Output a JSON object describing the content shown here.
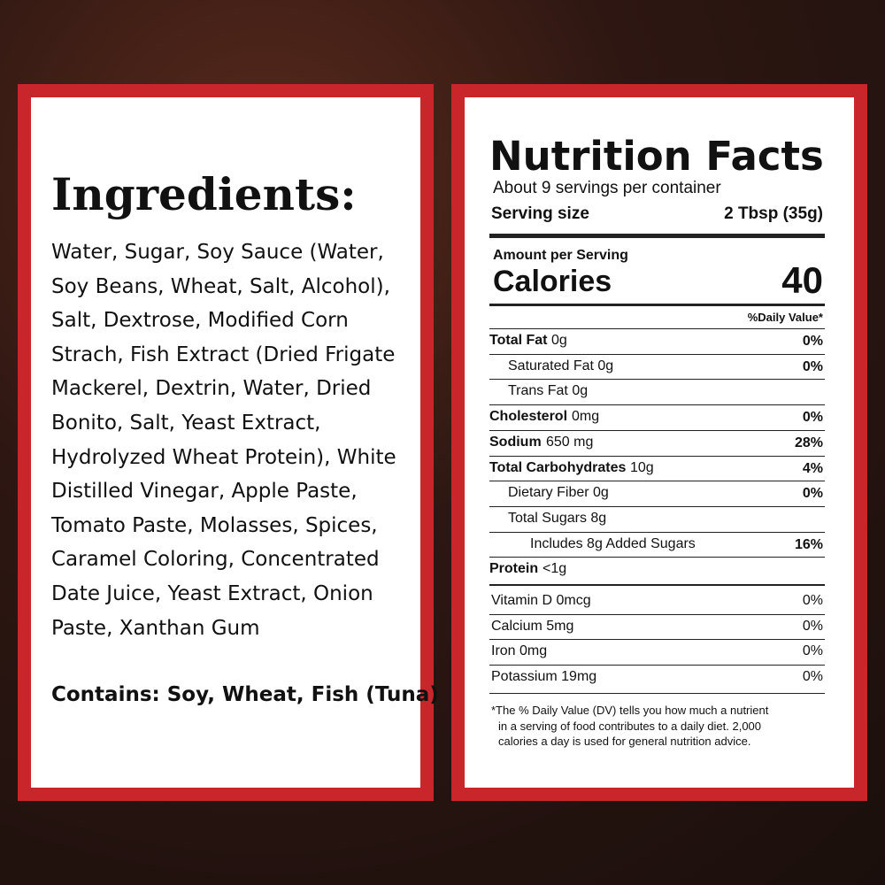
{
  "ingredients": {
    "title": "Ingredients:",
    "lines": [
      "Water, Sugar, Soy Sauce (Water,",
      "Soy Beans, Wheat, Salt, Alcohol),",
      "Salt, Dextrose, Modified Corn",
      "Strach, Fish Extract (Dried Frigate",
      "Mackerel, Dextrin, Water, Dried",
      "Bonito, Salt, Yeast Extract,",
      "Hydrolyzed Wheat Protein), White",
      "Distilled Vinegar, Apple Paste,",
      "Tomato Paste, Molasses, Spices,",
      "Caramel Coloring, Concentrated",
      "Date Juice, Yeast Extract, Onion",
      "Paste, Xanthan Gum"
    ],
    "contains": "Contains: Soy, Wheat, Fish (Tuna)"
  },
  "nutrition": {
    "title": "Nutrition Facts",
    "servings": "About 9 servings per container",
    "serving_size_label": "Serving size",
    "serving_size": "2 Tbsp (35g)",
    "amount_per_serving": "Amount per Serving",
    "calories_label": "Calories",
    "calories": "40",
    "dv_header": "%Daily Value*",
    "rows": [
      {
        "label": "Total Fat",
        "amount": "0g",
        "dv": "0%"
      },
      {
        "text": "Saturated Fat 0g",
        "dv": "0%"
      },
      {
        "text": "Trans Fat 0g"
      },
      {
        "label": "Cholesterol",
        "amount": "0mg",
        "dv": "0%"
      },
      {
        "label": "Sodium",
        "amount": "650 mg",
        "dv": "28%"
      },
      {
        "label": "Total Carbohydrates",
        "amount": "10g",
        "dv": "4%"
      },
      {
        "text": "Dietary Fiber 0g",
        "dv": "0%"
      },
      {
        "text": "Total Sugars 8g"
      },
      {
        "text": "Includes 8g Added Sugars",
        "dv": "16%"
      },
      {
        "label": "Protein",
        "amount": "<1g"
      }
    ],
    "vitamins": [
      {
        "text": "Vitamin D 0mcg",
        "dv": "0%"
      },
      {
        "text": "Calcium 5mg",
        "dv": "0%"
      },
      {
        "text": "Iron 0mg",
        "dv": "0%"
      },
      {
        "text": "Potassium 19mg",
        "dv": "0%"
      }
    ],
    "footnote": [
      "*The % Daily Value (DV) tells you how much a nutrient",
      "in a serving of food contributes to a daily diet. 2,000",
      "calories a day is used for general nutrition advice."
    ]
  }
}
